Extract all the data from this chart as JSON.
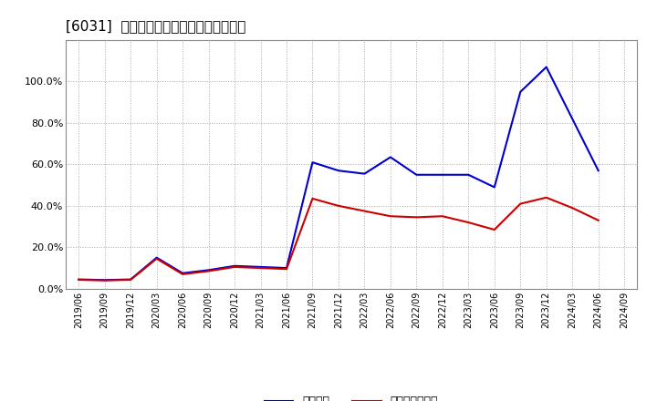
{
  "title": "[6031]  固定比率、固定長期適合率の推移",
  "dates": [
    "2019/06",
    "2019/09",
    "2019/12",
    "2020/03",
    "2020/06",
    "2020/09",
    "2020/12",
    "2021/03",
    "2021/06",
    "2021/09",
    "2021/12",
    "2022/03",
    "2022/06",
    "2022/09",
    "2022/12",
    "2023/03",
    "2023/06",
    "2023/09",
    "2023/12",
    "2024/03",
    "2024/06",
    "2024/09"
  ],
  "fixed_ratio": [
    4.5,
    4.2,
    4.5,
    15.0,
    7.5,
    9.0,
    11.0,
    10.5,
    10.0,
    61.0,
    57.0,
    55.5,
    63.5,
    55.0,
    55.0,
    55.0,
    49.0,
    95.0,
    107.0,
    82.0,
    57.0,
    null
  ],
  "fixed_lt_ratio": [
    4.3,
    4.0,
    4.3,
    14.5,
    7.0,
    8.5,
    10.5,
    10.0,
    9.5,
    43.5,
    40.0,
    37.5,
    35.0,
    34.5,
    35.0,
    32.0,
    28.5,
    41.0,
    44.0,
    39.0,
    33.0,
    null
  ],
  "blue_color": "#0000cc",
  "red_color": "#cc0000",
  "background_color": "#ffffff",
  "grid_color": "#aaaaaa",
  "ylim": [
    0,
    120
  ],
  "yticks": [
    0,
    20,
    40,
    60,
    80,
    100
  ],
  "legend_fixed_ratio": "固定比率",
  "legend_fixed_lt_ratio": "固定長期適合率"
}
